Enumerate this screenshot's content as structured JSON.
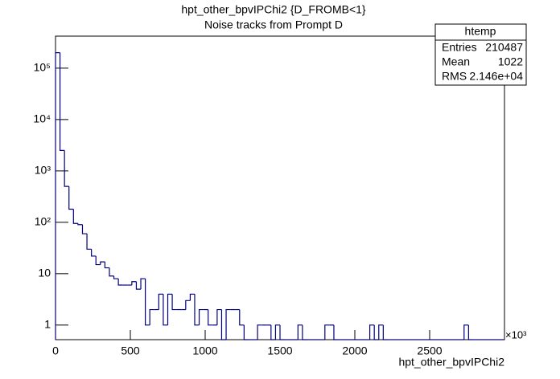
{
  "chart_data": {
    "type": "histogram",
    "title": "hpt_other_bpvIPChi2 {D_FROMB<1}",
    "subtitle": "Noise tracks from Prompt D",
    "x_label": "hpt_other_bpvIPChi2",
    "x_multiplier": "×10³",
    "color": "#000080",
    "log_y": true,
    "grid": false,
    "xlim": [
      0,
      3000
    ],
    "ylim": [
      0.52,
      420000
    ],
    "xticks": [
      0,
      500,
      1000,
      1500,
      2000,
      2500
    ],
    "yticks": [
      1,
      10,
      {
        "value": 100,
        "label": "10²"
      },
      {
        "value": 1000,
        "label": "10³"
      },
      {
        "value": 10000,
        "label": "10⁴"
      },
      {
        "value": 100000,
        "label": "10⁵"
      }
    ],
    "bins": [
      0,
      30,
      60,
      90,
      120,
      150,
      180,
      210,
      240,
      270,
      300,
      330,
      360,
      390,
      420,
      450,
      480,
      510,
      540,
      570,
      600,
      630,
      660,
      690,
      720,
      750,
      780,
      810,
      840,
      870,
      900,
      930,
      960,
      990,
      1020,
      1050,
      1080,
      1110,
      1140,
      1170,
      1200,
      1230,
      1260,
      1290,
      1320,
      1350,
      1380,
      1410,
      1440,
      1470,
      1500,
      1530,
      1560,
      1590,
      1620,
      1650,
      1680,
      1710,
      1740,
      1770,
      1800,
      1830,
      1860,
      1890,
      1920,
      1950,
      1980,
      2010,
      2040,
      2070,
      2100,
      2130,
      2160,
      2190,
      2220,
      2250,
      2280,
      2310,
      2340,
      2370,
      2400,
      2430,
      2460,
      2490,
      2520,
      2550,
      2580,
      2610,
      2640,
      2670,
      2700,
      2730,
      2760,
      2790,
      2820,
      2850,
      2880,
      2910,
      2940,
      2970,
      3000
    ],
    "values": [
      200000,
      2500,
      500,
      180,
      95,
      90,
      60,
      30,
      22,
      15,
      17,
      13,
      9,
      8,
      6,
      6,
      6,
      7,
      5,
      8,
      1,
      2,
      2,
      4,
      1,
      4,
      2,
      2,
      2,
      3,
      4,
      1,
      2,
      2,
      1,
      1,
      2,
      0,
      2,
      2,
      2,
      1,
      0,
      0,
      0,
      1,
      1,
      1,
      0,
      1,
      0,
      0,
      0,
      0,
      1,
      0,
      0,
      0,
      0,
      0,
      1,
      1,
      0,
      0,
      0,
      0,
      0,
      0,
      0,
      0,
      1,
      0,
      1,
      0,
      0,
      0,
      0,
      0,
      0,
      0,
      0,
      0,
      0,
      0,
      0,
      0,
      0,
      0,
      0,
      0,
      0,
      1,
      0,
      0,
      0,
      0,
      0,
      0,
      0,
      0
    ],
    "stats": {
      "title": "htemp",
      "rows": [
        [
          "Entries",
          "210487"
        ],
        [
          "Mean",
          "1022"
        ],
        [
          "RMS",
          "2.146e+04"
        ]
      ]
    }
  }
}
